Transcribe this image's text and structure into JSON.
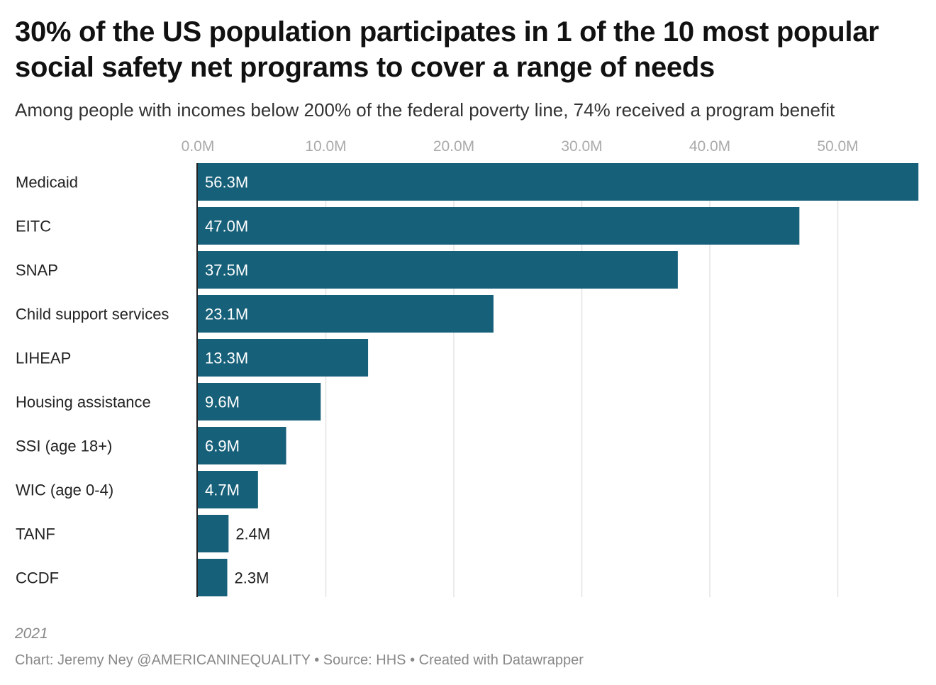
{
  "chart_data": {
    "type": "bar",
    "orientation": "horizontal",
    "title": "30% of the US population participates in 1 of the 10 most popular social safety net programs to cover a range of needs",
    "subtitle": "Among people with incomes below 200% of the federal poverty line, 74% received a program benefit",
    "categories": [
      "Medicaid",
      "EITC",
      "SNAP",
      "Child support services",
      "LIHEAP",
      "Housing assistance",
      "SSI (age 18+)",
      "WIC (age 0-4)",
      "TANF",
      "CCDF"
    ],
    "values": [
      56.3,
      47.0,
      37.5,
      23.1,
      13.3,
      9.6,
      6.9,
      4.7,
      2.4,
      2.3
    ],
    "labels": [
      "56.3M",
      "47.0M",
      "37.5M",
      "23.1M",
      "13.3M",
      "9.6M",
      "6.9M",
      "4.7M",
      "2.4M",
      "2.3M"
    ],
    "ticks": [
      0,
      10,
      20,
      30,
      40,
      50
    ],
    "tick_labels": [
      "0.0M",
      "10.0M",
      "20.0M",
      "30.0M",
      "40.0M",
      "50.0M"
    ],
    "xlim": [
      0,
      56.3
    ],
    "grid": true,
    "bar_color": "#176079",
    "note": "2021",
    "footer": "Chart: Jeremy Ney @AMERICANINEQUALITY • Source: HHS • Created with Datawrapper"
  }
}
